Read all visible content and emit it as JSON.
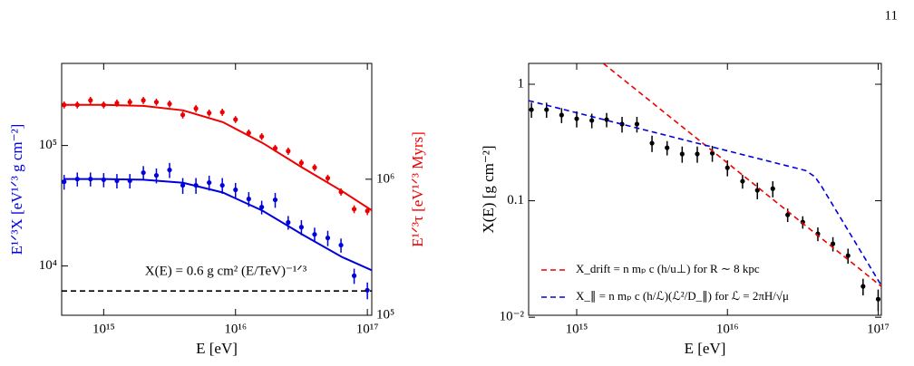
{
  "page_number": "11",
  "chart_data": [
    {
      "type": "errorbar",
      "xlabel": "E [eV]",
      "ylabel": "E¹ᐟ³X [eV¹ᐟ³ g cm⁻²]",
      "y2label": "E¹ᐟ³τ [eV¹ᐟ³ Myrs]",
      "annotation": "X(E) = 0.6 g cm² (E/TeV)⁻¹ᐟ³",
      "xscale": "log",
      "yscale": "log",
      "y2scale": "log",
      "xlim": [
        480000000000000.0,
        1.08e+17
      ],
      "ylim": [
        3900,
        480000
      ],
      "y2lim": [
        100000,
        7100000
      ],
      "xticks": [
        {
          "value": 1000000000000000.0,
          "label": "10¹⁵"
        },
        {
          "value": 1e+16,
          "label": "10¹⁶"
        },
        {
          "value": 1e+17,
          "label": "10¹⁷"
        }
      ],
      "yticks": [
        {
          "value": 10000,
          "label": "10⁴"
        },
        {
          "value": 100000,
          "label": "10⁵"
        }
      ],
      "y2ticks": [
        {
          "value": 100000,
          "label": "10⁵"
        },
        {
          "value": 1000000,
          "label": "10⁶"
        }
      ],
      "series": [
        {
          "style": "points",
          "color": "#0000dd",
          "axis": "y",
          "x": [
            501000000000000.0,
            631000000000000.0,
            794000000000000.0,
            1000000000000000.0,
            1260000000000000.0,
            1580000000000000.0,
            2000000000000000.0,
            2510000000000000.0,
            3160000000000000.0,
            3980000000000000.0,
            5010000000000000.0,
            6310000000000000.0,
            7940000000000000.0,
            1e+16,
            1.26e+16,
            1.58e+16,
            2e+16,
            2.51e+16,
            3.16e+16,
            3.98e+16,
            5.01e+16,
            6.31e+16,
            7.94e+16,
            1e+17
          ],
          "values": [
            50000,
            52700,
            52700,
            52000,
            51000,
            51000,
            59500,
            56500,
            62700,
            46700,
            46700,
            49200,
            46700,
            42900,
            36000,
            30800,
            35400,
            23000,
            21000,
            18300,
            17100,
            14900,
            8300,
            6300
          ],
          "errors": [
            7000,
            7000,
            7000,
            7000,
            7000,
            7000,
            8000,
            8000,
            9000,
            7000,
            7000,
            7000,
            7000,
            6000,
            5000,
            4000,
            5000,
            3000,
            3000,
            2500,
            2500,
            2000,
            1200,
            1000
          ]
        },
        {
          "style": "line",
          "color": "#0000dd",
          "axis": "y",
          "x": [
            500000000000000.0,
            1000000000000000.0,
            2000000000000000.0,
            4000000000000000.0,
            8000000000000000.0,
            1.6e+16,
            3.2e+16,
            6.4e+16,
            1.08e+17
          ],
          "values": [
            52700,
            52700,
            52000,
            49000,
            40700,
            28800,
            18300,
            11900,
            9200
          ]
        },
        {
          "style": "points",
          "color": "#ee0000",
          "axis": "y2",
          "x": [
            501000000000000.0,
            631000000000000.0,
            794000000000000.0,
            1000000000000000.0,
            1260000000000000.0,
            1580000000000000.0,
            2000000000000000.0,
            2510000000000000.0,
            3160000000000000.0,
            3980000000000000.0,
            5010000000000000.0,
            6310000000000000.0,
            7940000000000000.0,
            1e+16,
            1.26e+16,
            1.58e+16,
            2e+16,
            2.51e+16,
            3.16e+16,
            3.98e+16,
            5.01e+16,
            6.31e+16,
            7.94e+16,
            1e+17
          ],
          "values": [
            3520000,
            3520000,
            3800000,
            3520000,
            3630000,
            3690000,
            3800000,
            3690000,
            3580000,
            2970000,
            3310000,
            3070000,
            3110000,
            2750000,
            2190000,
            2060000,
            1690000,
            1610000,
            1320000,
            1220000,
            1020000,
            807000,
            603000,
            585000
          ],
          "errors": [
            210000,
            210000,
            230000,
            210000,
            220000,
            220000,
            230000,
            220000,
            210000,
            180000,
            200000,
            180000,
            190000,
            160000,
            130000,
            120000,
            100000,
            100000,
            80000,
            70000,
            60000,
            50000,
            40000,
            40000
          ]
        },
        {
          "style": "line",
          "color": "#ee0000",
          "axis": "y2",
          "x": [
            500000000000000.0,
            1000000000000000.0,
            2000000000000000.0,
            4000000000000000.0,
            8000000000000000.0,
            1.6e+16,
            3.2e+16,
            6.4e+16,
            1.08e+17
          ],
          "values": [
            3520000,
            3520000,
            3460000,
            3210000,
            2630000,
            1850000,
            1220000,
            820000,
            590000
          ]
        },
        {
          "style": "dashed",
          "color": "#000000",
          "axis": "y",
          "x": [
            480000000000000.0,
            1.08e+17
          ],
          "values": [
            6200,
            6200
          ]
        }
      ]
    },
    {
      "type": "errorbar",
      "xlabel": "E [eV]",
      "ylabel": "X(E) [g cm⁻²]",
      "xscale": "log",
      "yscale": "log",
      "xlim": [
        480000000000000.0,
        1.05e+17
      ],
      "ylim": [
        0.0104,
        1.51
      ],
      "xticks": [
        {
          "value": 1000000000000000.0,
          "label": "10¹⁵"
        },
        {
          "value": 1e+16,
          "label": "10¹⁶"
        },
        {
          "value": 1e+17,
          "label": "10¹⁷"
        }
      ],
      "yticks": [
        {
          "value": 0.01,
          "label": "10⁻²"
        },
        0.1,
        1
      ],
      "legend": "lower left",
      "series": [
        {
          "style": "points",
          "color": "#000000",
          "x": [
            501000000000000.0,
            631000000000000.0,
            794000000000000.0,
            1000000000000000.0,
            1260000000000000.0,
            1580000000000000.0,
            2000000000000000.0,
            2510000000000000.0,
            3160000000000000.0,
            3980000000000000.0,
            5010000000000000.0,
            6310000000000000.0,
            7940000000000000.0,
            1e+16,
            1.26e+16,
            1.58e+16,
            2e+16,
            2.51e+16,
            3.16e+16,
            3.98e+16,
            5.01e+16,
            6.31e+16,
            7.94e+16,
            1e+17
          ],
          "values": [
            0.605,
            0.605,
            0.544,
            0.506,
            0.489,
            0.497,
            0.455,
            0.455,
            0.312,
            0.285,
            0.252,
            0.252,
            0.256,
            0.192,
            0.147,
            0.123,
            0.127,
            0.0757,
            0.0656,
            0.052,
            0.0427,
            0.0338,
            0.0184,
            0.0143
          ],
          "errors": [
            0.09,
            0.09,
            0.08,
            0.08,
            0.07,
            0.07,
            0.07,
            0.07,
            0.05,
            0.04,
            0.04,
            0.04,
            0.04,
            0.03,
            0.02,
            0.02,
            0.02,
            0.01,
            0.008,
            0.007,
            0.006,
            0.005,
            0.003,
            0.003
          ]
        },
        {
          "style": "dashed",
          "color": "#ee0000",
          "name": "X_drift = n mₚ c (h/u⊥) for R ∼ 8 kpc",
          "x": [
            1500000000000000.0,
            1.05e+17
          ],
          "values": [
            1.51,
            0.0184
          ]
        },
        {
          "style": "dashed",
          "color": "#0000dd",
          "name": "X_∥ = n mₚ c (h/ℒ)(ℒ²/D_∥) for ℒ = 2πH/√μ",
          "x": [
            480000000000000.0,
            3.3e+16,
            3.8e+16,
            4.2e+16,
            1.05e+17
          ],
          "values": [
            0.724,
            0.182,
            0.161,
            0.134,
            0.0187
          ]
        }
      ]
    }
  ]
}
